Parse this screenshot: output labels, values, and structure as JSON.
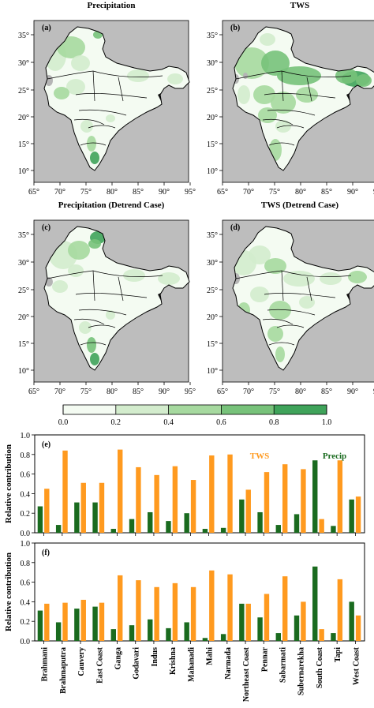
{
  "maps": {
    "titles": [
      "Precipitation",
      "TWS",
      "Precipitation (Detrend Case)",
      "TWS (Detrend Case)"
    ],
    "panel_labels": [
      "(a)",
      "(b)",
      "(c)",
      "(d)"
    ],
    "lon_ticks": [
      "65°",
      "70°",
      "75°",
      "80°",
      "85°",
      "90°",
      "95°"
    ],
    "lat_ticks": [
      "35°",
      "30°",
      "25°",
      "20°",
      "15°",
      "10°"
    ],
    "colorbar": {
      "ticks": [
        "0.0",
        "0.2",
        "0.4",
        "0.6",
        "0.8",
        "1.0"
      ],
      "colors": [
        "#f4fbf2",
        "#d3eccd",
        "#a6d99f",
        "#77c27a",
        "#3fa35a"
      ]
    }
  },
  "chart_data": [
    {
      "type": "bar",
      "panel_label": "(e)",
      "ylabel": "Relative contribution",
      "ylim": [
        0,
        1.0
      ],
      "yticks": [
        "0.0",
        "0.2",
        "0.4",
        "0.6",
        "0.8",
        "1.0"
      ],
      "categories": [
        "Brahmani",
        "Brahmaputra",
        "Cauvery",
        "East Coast",
        "Ganga",
        "Godavari",
        "Indus",
        "Krishna",
        "Mahanadi",
        "Mahi",
        "Narmada",
        "Northeast Coast",
        "Pennar",
        "Sabarmati",
        "Subernarekha",
        "South Coast",
        "Tapi",
        "West Coast"
      ],
      "series": [
        {
          "name": "Precip",
          "color": "#1a6b1f",
          "values": [
            0.27,
            0.08,
            0.31,
            0.31,
            0.04,
            0.14,
            0.21,
            0.12,
            0.2,
            0.04,
            0.05,
            0.34,
            0.21,
            0.08,
            0.19,
            0.74,
            0.07,
            0.34
          ]
        },
        {
          "name": "TWS",
          "color": "#ff9a1f",
          "values": [
            0.45,
            0.84,
            0.51,
            0.51,
            0.85,
            0.67,
            0.59,
            0.68,
            0.54,
            0.79,
            0.8,
            0.44,
            0.62,
            0.7,
            0.65,
            0.14,
            0.74,
            0.37
          ]
        }
      ],
      "legend": {
        "tws": "TWS",
        "precip": "Precip"
      }
    },
    {
      "type": "bar",
      "panel_label": "(f)",
      "ylabel": "Relative contribution",
      "ylim": [
        0,
        1.0
      ],
      "yticks": [
        "0.0",
        "0.2",
        "0.4",
        "0.6",
        "0.8",
        "1.0"
      ],
      "categories": [
        "Brahmani",
        "Brahmaputra",
        "Cauvery",
        "East Coast",
        "Ganga",
        "Godavari",
        "Indus",
        "Krishna",
        "Mahanadi",
        "Mahi",
        "Narmada",
        "Northeast Coast",
        "Pennar",
        "Sabarmati",
        "Subernarekha",
        "South Coast",
        "Tapi",
        "West Coast"
      ],
      "series": [
        {
          "name": "Precip",
          "color": "#1a6b1f",
          "values": [
            0.31,
            0.19,
            0.33,
            0.35,
            0.12,
            0.16,
            0.22,
            0.13,
            0.19,
            0.03,
            0.07,
            0.38,
            0.24,
            0.08,
            0.26,
            0.76,
            0.08,
            0.4
          ]
        },
        {
          "name": "TWS",
          "color": "#ff9a1f",
          "values": [
            0.38,
            0.39,
            0.42,
            0.39,
            0.67,
            0.62,
            0.55,
            0.59,
            0.55,
            0.72,
            0.68,
            0.38,
            0.48,
            0.66,
            0.4,
            0.12,
            0.63,
            0.26
          ]
        }
      ]
    }
  ]
}
